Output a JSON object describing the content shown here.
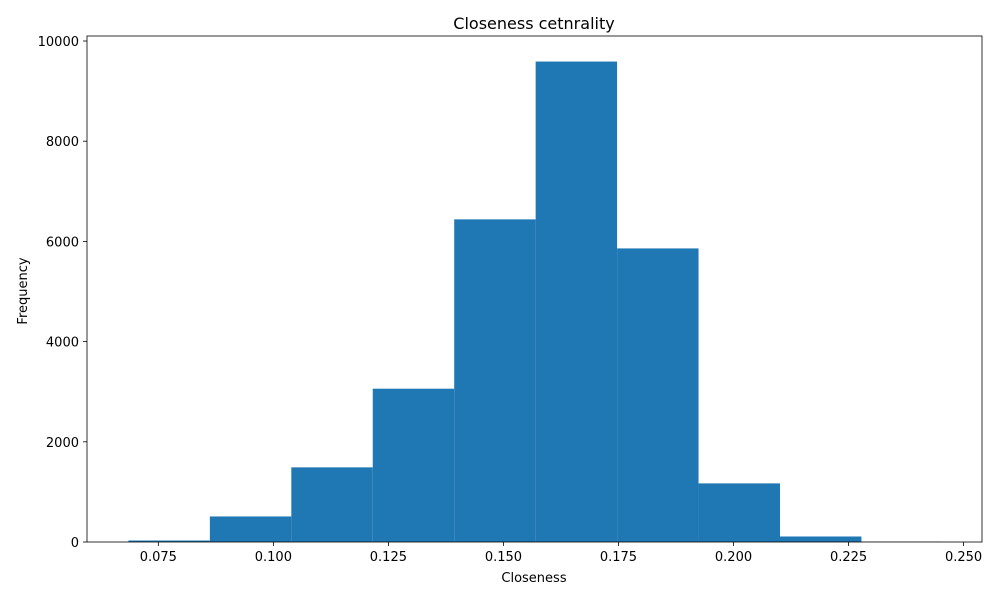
{
  "chart_data": {
    "type": "bar",
    "title": "Closeness cetnrality",
    "xlabel": "Closeness",
    "ylabel": "Frequency",
    "xlim": [
      0.0595,
      0.254
    ],
    "ylim": [
      0,
      10100
    ],
    "xticks": [
      "0.075",
      "0.100",
      "0.125",
      "0.150",
      "0.175",
      "0.200",
      "0.225",
      "0.250"
    ],
    "xtick_values": [
      0.075,
      0.1,
      0.125,
      0.15,
      0.175,
      0.2,
      0.225,
      0.25
    ],
    "yticks": [
      "0",
      "2000",
      "4000",
      "6000",
      "8000",
      "10000"
    ],
    "ytick_values": [
      0,
      2000,
      4000,
      6000,
      8000,
      10000
    ],
    "bin_edges": [
      0.0685,
      0.0862,
      0.1039,
      0.1216,
      0.1393,
      0.157,
      0.1747,
      0.1924,
      0.2101,
      0.2278,
      0.2455
    ],
    "values": [
      30,
      510,
      1490,
      3060,
      6440,
      9590,
      5860,
      1170,
      110,
      5
    ],
    "color": "#1f77b4",
    "grid": false
  }
}
